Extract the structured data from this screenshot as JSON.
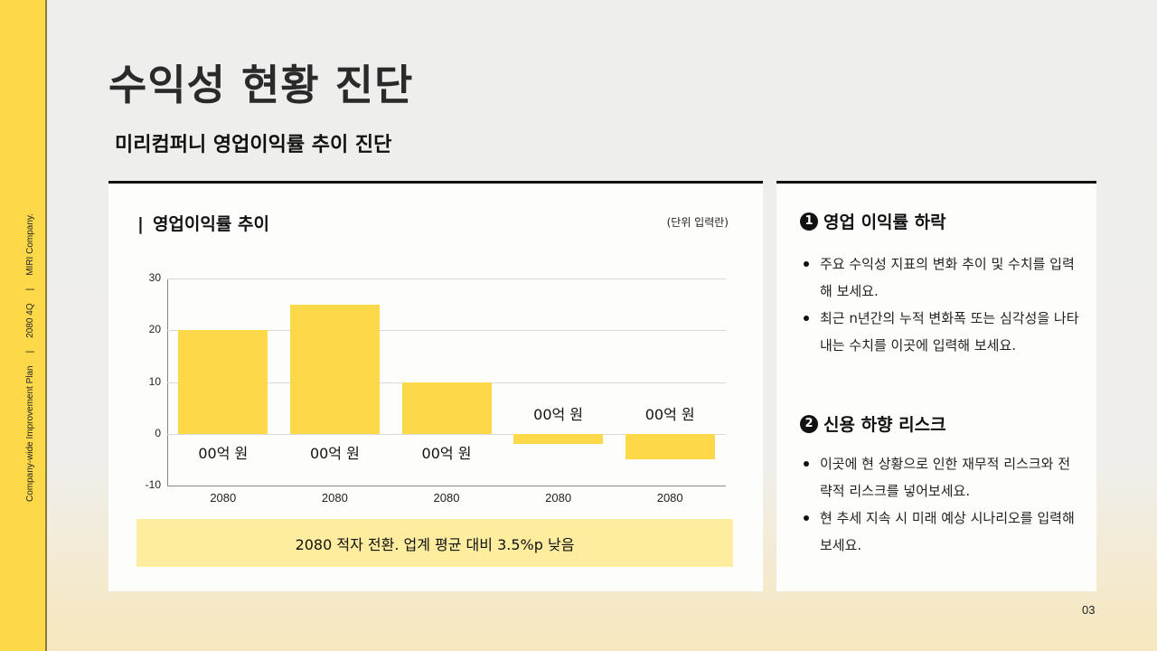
{
  "side": {
    "company": "MIRI Company.",
    "separator": "|",
    "period": "2080 4Q",
    "plan": "Company-wide Improvement Plan"
  },
  "page": {
    "title": "수익성 현황 진단",
    "subtitle": "미리컴퍼니 영업이익률 추이 진단",
    "number": "03"
  },
  "chart_card": {
    "title_mark": "|",
    "title": "영업이익률 추이",
    "unit": "(단위 입력란)",
    "note": "2080 적자 전환. 업계 평균 대비 3.5%p 낮음"
  },
  "chart_data": {
    "type": "bar",
    "title": "영업이익률 추이",
    "xlabel": "",
    "ylabel": "",
    "categories": [
      "2080",
      "2080",
      "2080",
      "2080",
      "2080"
    ],
    "values": [
      20,
      25,
      10,
      -2,
      -5
    ],
    "data_labels": [
      "00억 원",
      "00억 원",
      "00억 원",
      "00억 원",
      "00억 원"
    ],
    "ylim": [
      -10,
      30
    ],
    "yticks": [
      30,
      20,
      10,
      0,
      -10
    ],
    "grid": true,
    "legend": null,
    "bar_color": "#fdd94a"
  },
  "info_card": {
    "sections": [
      {
        "badge": "1",
        "heading": "영업 이익률 하락",
        "items": [
          "주요 수익성 지표의 변화 추이 및 수치를 입력해 보세요.",
          "최근 n년간의 누적 변화폭 또는 심각성을 나타내는 수치를 이곳에 입력해 보세요."
        ]
      },
      {
        "badge": "2",
        "heading": "신용 하향 리스크",
        "items": [
          "이곳에 현 상황으로 인한 재무적 리스크와 전략적 리스크를 넣어보세요.",
          "현 추세 지속 시 미래 예상 시나리오를 입력해 보세요."
        ]
      }
    ]
  },
  "colors": {
    "accent_yellow": "#fdd94a",
    "banner_yellow": "#feec9f",
    "text_dark": "#111111",
    "background": "#eeeeec"
  }
}
